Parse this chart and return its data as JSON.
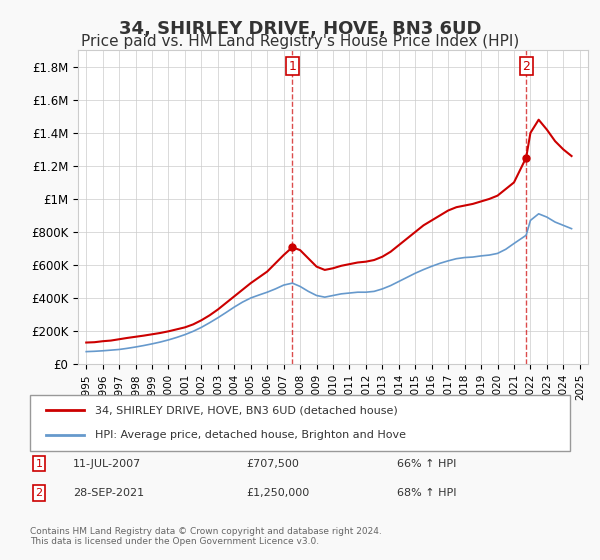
{
  "title": "34, SHIRLEY DRIVE, HOVE, BN3 6UD",
  "subtitle": "Price paid vs. HM Land Registry's House Price Index (HPI)",
  "title_fontsize": 13,
  "subtitle_fontsize": 11,
  "background_color": "#f9f9f9",
  "plot_bg_color": "#ffffff",
  "red_color": "#cc0000",
  "blue_color": "#6699cc",
  "marker1_date_str": "11-JUL-2007",
  "marker1_price": 707500,
  "marker1_hpi_pct": "66% ↑ HPI",
  "marker2_date_str": "28-SEP-2021",
  "marker2_price": 1250000,
  "marker2_hpi_pct": "68% ↑ HPI",
  "legend_label_red": "34, SHIRLEY DRIVE, HOVE, BN3 6UD (detached house)",
  "legend_label_blue": "HPI: Average price, detached house, Brighton and Hove",
  "footer_text": "Contains HM Land Registry data © Crown copyright and database right 2024.\nThis data is licensed under the Open Government Licence v3.0.",
  "ylim": [
    0,
    1900000
  ],
  "yticks": [
    0,
    200000,
    400000,
    600000,
    800000,
    1000000,
    1200000,
    1400000,
    1600000,
    1800000
  ],
  "ytick_labels": [
    "£0",
    "£200K",
    "£400K",
    "£600K",
    "£800K",
    "£1M",
    "£1.2M",
    "£1.4M",
    "£1.6M",
    "£1.8M"
  ],
  "xlim_start": 1994.5,
  "xlim_end": 2025.5,
  "marker1_x": 2007.53,
  "marker2_x": 2021.74,
  "red_x": [
    1995.0,
    1995.5,
    1996.0,
    1996.5,
    1997.0,
    1997.5,
    1998.0,
    1998.5,
    1999.0,
    1999.5,
    2000.0,
    2000.5,
    2001.0,
    2001.5,
    2002.0,
    2002.5,
    2003.0,
    2003.5,
    2004.0,
    2004.5,
    2005.0,
    2005.5,
    2006.0,
    2006.5,
    2007.0,
    2007.53,
    2008.0,
    2008.5,
    2009.0,
    2009.5,
    2010.0,
    2010.5,
    2011.0,
    2011.5,
    2012.0,
    2012.5,
    2013.0,
    2013.5,
    2014.0,
    2014.5,
    2015.0,
    2015.5,
    2016.0,
    2016.5,
    2017.0,
    2017.5,
    2018.0,
    2018.5,
    2019.0,
    2019.5,
    2020.0,
    2020.5,
    2021.0,
    2021.74,
    2022.0,
    2022.5,
    2023.0,
    2023.5,
    2024.0,
    2024.5
  ],
  "red_y": [
    130000,
    132000,
    138000,
    142000,
    150000,
    158000,
    165000,
    172000,
    180000,
    188000,
    198000,
    210000,
    222000,
    240000,
    265000,
    295000,
    330000,
    370000,
    410000,
    450000,
    490000,
    525000,
    560000,
    610000,
    660000,
    707500,
    690000,
    640000,
    590000,
    570000,
    580000,
    595000,
    605000,
    615000,
    620000,
    630000,
    650000,
    680000,
    720000,
    760000,
    800000,
    840000,
    870000,
    900000,
    930000,
    950000,
    960000,
    970000,
    985000,
    1000000,
    1020000,
    1060000,
    1100000,
    1250000,
    1400000,
    1480000,
    1420000,
    1350000,
    1300000,
    1260000
  ],
  "blue_x": [
    1995.0,
    1995.5,
    1996.0,
    1996.5,
    1997.0,
    1997.5,
    1998.0,
    1998.5,
    1999.0,
    1999.5,
    2000.0,
    2000.5,
    2001.0,
    2001.5,
    2002.0,
    2002.5,
    2003.0,
    2003.5,
    2004.0,
    2004.5,
    2005.0,
    2005.5,
    2006.0,
    2006.5,
    2007.0,
    2007.53,
    2008.0,
    2008.5,
    2009.0,
    2009.5,
    2010.0,
    2010.5,
    2011.0,
    2011.5,
    2012.0,
    2012.5,
    2013.0,
    2013.5,
    2014.0,
    2014.5,
    2015.0,
    2015.5,
    2016.0,
    2016.5,
    2017.0,
    2017.5,
    2018.0,
    2018.5,
    2019.0,
    2019.5,
    2020.0,
    2020.5,
    2021.0,
    2021.74,
    2022.0,
    2022.5,
    2023.0,
    2023.5,
    2024.0,
    2024.5
  ],
  "blue_y": [
    75000,
    77000,
    80000,
    84000,
    88000,
    95000,
    103000,
    112000,
    122000,
    133000,
    146000,
    161000,
    178000,
    198000,
    222000,
    250000,
    280000,
    312000,
    345000,
    375000,
    400000,
    418000,
    435000,
    455000,
    478000,
    490000,
    470000,
    440000,
    415000,
    405000,
    415000,
    425000,
    430000,
    435000,
    435000,
    440000,
    455000,
    475000,
    500000,
    525000,
    550000,
    572000,
    592000,
    610000,
    625000,
    638000,
    645000,
    648000,
    655000,
    660000,
    670000,
    695000,
    730000,
    780000,
    870000,
    910000,
    890000,
    860000,
    840000,
    820000
  ]
}
